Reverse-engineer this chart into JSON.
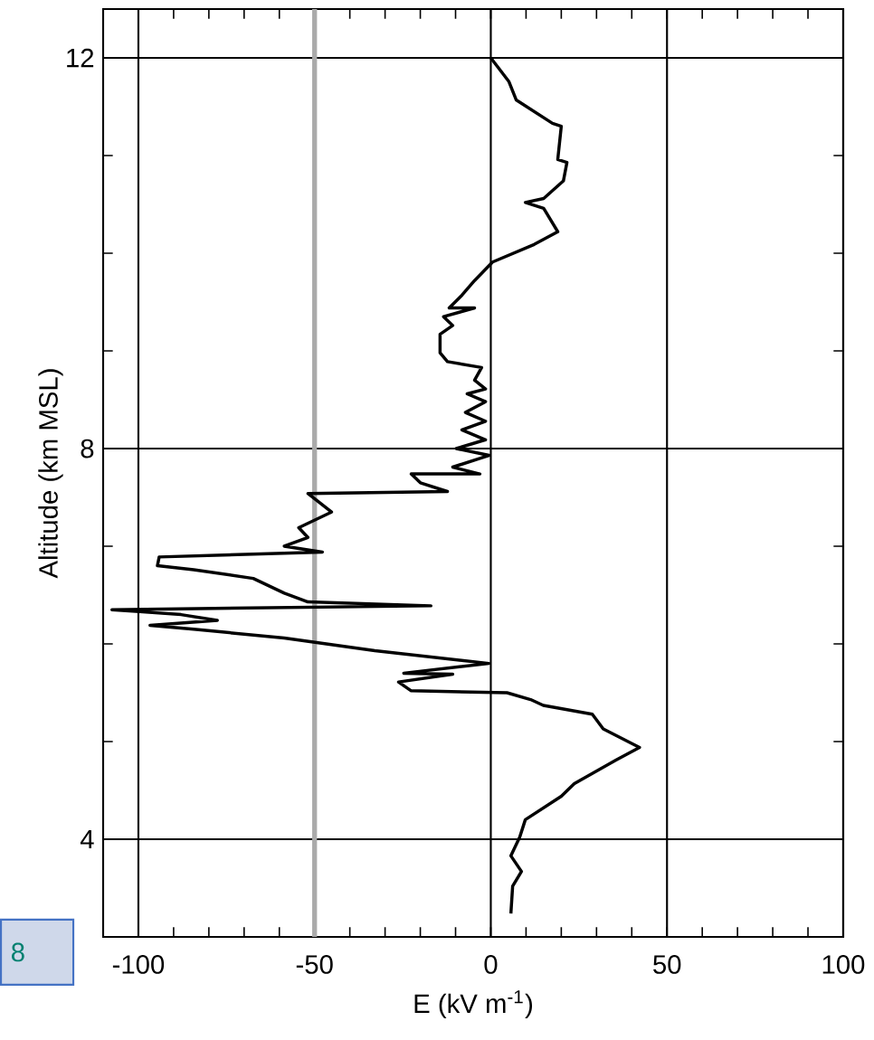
{
  "chart_data": {
    "type": "line",
    "xlabel": "E (kV m$^{-1}$)",
    "ylabel": "Altitude (km MSL)",
    "xlim": [
      -110,
      100
    ],
    "ylim": [
      3,
      12.5
    ],
    "xticks": [
      -100,
      -50,
      0,
      50,
      100
    ],
    "yticks": [
      4,
      {
        "value": 8,
        "label": "8"
      },
      12
    ],
    "grid": true,
    "marker": "none",
    "line_style": "solid",
    "ref_lines": [
      {
        "axis": "x",
        "value": -50,
        "color": "#aaaaaa"
      }
    ],
    "annotations": [
      "8"
    ],
    "series": [
      {
        "color": "#000000",
        "x": [
          0,
          5.1,
          7.2,
          17.5,
          20,
          19,
          21.6,
          20.6,
          15,
          9.8,
          15,
          19,
          12.3,
          0.5,
          -4.6,
          -8.2,
          -11.8,
          -4.6,
          -13.4,
          -10.8,
          -14.4,
          -14.4,
          -12.3,
          -2.6,
          -4.6,
          -1.5,
          -6.7,
          -1.5,
          -7.2,
          -1.5,
          -8.2,
          -1.5,
          -9.8,
          -0.5,
          -10.8,
          -3.1,
          -22.6,
          -20,
          -12.3,
          -51.9,
          -45.2,
          -54.5,
          -51.9,
          -58.6,
          -47.8,
          -94.1,
          -94.6,
          -84.3,
          -67.4,
          -58.6,
          -51.9,
          -17,
          -107.5,
          -99.7,
          -87.9,
          -77.6,
          -96.7,
          -84.3,
          -58.6,
          -32.9,
          -0.5,
          -24.7,
          -10.8,
          -26.2,
          -22.6,
          4.6,
          11.3,
          14.9,
          28.8,
          31.9,
          42.2,
          35.5,
          23.7,
          20,
          9.8,
          8.2,
          5.7,
          8.7,
          6.2,
          5.7
        ],
        "values": [
          12,
          11.76,
          11.57,
          11.33,
          11.3,
          10.96,
          10.93,
          10.74,
          10.56,
          10.52,
          10.46,
          10.22,
          10.09,
          9.91,
          9.72,
          9.57,
          9.44,
          9.44,
          9.35,
          9.26,
          9.17,
          8.98,
          8.89,
          8.83,
          8.7,
          8.61,
          8.56,
          8.48,
          8.37,
          8.28,
          8.19,
          8.09,
          8,
          7.93,
          7.81,
          7.74,
          7.74,
          7.65,
          7.56,
          7.54,
          7.35,
          7.19,
          7.09,
          7,
          6.94,
          6.89,
          6.8,
          6.76,
          6.67,
          6.52,
          6.43,
          6.39,
          6.35,
          6.33,
          6.3,
          6.24,
          6.19,
          6.15,
          6.06,
          5.93,
          5.8,
          5.7,
          5.69,
          5.61,
          5.52,
          5.5,
          5.43,
          5.37,
          5.28,
          5.13,
          4.94,
          4.81,
          4.57,
          4.44,
          4.2,
          4.02,
          3.83,
          3.67,
          3.52,
          3.24
        ]
      }
    ]
  }
}
